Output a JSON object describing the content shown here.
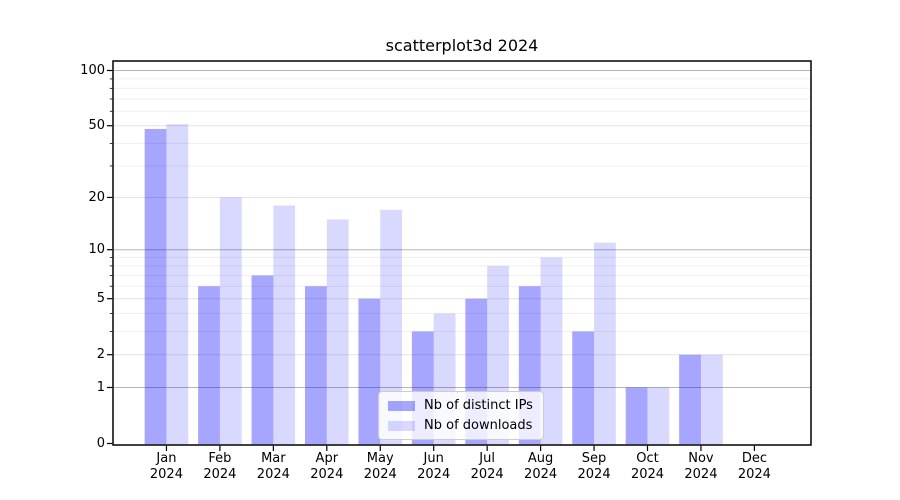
{
  "chart_data": {
    "type": "bar",
    "title": "scatterplot3d 2024",
    "xlabel": "",
    "ylabel": "",
    "yscale": "log1p",
    "ylim": [
      0,
      113
    ],
    "grid": true,
    "legend_position": "lower center",
    "categories": [
      "Jan 2024",
      "Feb 2024",
      "Mar 2024",
      "Apr 2024",
      "May 2024",
      "Jun 2024",
      "Jul 2024",
      "Aug 2024",
      "Sep 2024",
      "Oct 2024",
      "Nov 2024",
      "Dec 2024"
    ],
    "x_tick_labels": [
      [
        "Jan",
        "2024"
      ],
      [
        "Feb",
        "2024"
      ],
      [
        "Mar",
        "2024"
      ],
      [
        "Apr",
        "2024"
      ],
      [
        "May",
        "2024"
      ],
      [
        "Jun",
        "2024"
      ],
      [
        "Jul",
        "2024"
      ],
      [
        "Aug",
        "2024"
      ],
      [
        "Sep",
        "2024"
      ],
      [
        "Oct",
        "2024"
      ],
      [
        "Nov",
        "2024"
      ],
      [
        "Dec",
        "2024"
      ]
    ],
    "yticks": [
      0,
      1,
      2,
      5,
      10,
      20,
      50,
      100
    ],
    "yticks_major": [
      1,
      10,
      100
    ],
    "yticks_minor": [
      3,
      4,
      6,
      7,
      8,
      9,
      30,
      40,
      60,
      70,
      80,
      90
    ],
    "series": [
      {
        "key": "distinct-ips",
        "name": "Nb of distinct IPs",
        "color": "#0000ff",
        "opacity": 0.35,
        "values": [
          48,
          6,
          7,
          6,
          5,
          3,
          5,
          6,
          3,
          1,
          2,
          0
        ]
      },
      {
        "key": "downloads",
        "name": "Nb of downloads",
        "color": "#0000ff",
        "opacity": 0.15,
        "values": [
          51,
          20,
          18,
          15,
          17,
          4,
          8,
          9,
          11,
          1,
          2,
          0
        ]
      }
    ]
  },
  "colors": {
    "background": "#ffffff",
    "spine": "#000000",
    "tick": "#000000",
    "grid_major": "#b5b5b5",
    "grid_mid": "#e4e4e4",
    "grid_minor": "#efefef",
    "legend_border": "#cccccc"
  }
}
